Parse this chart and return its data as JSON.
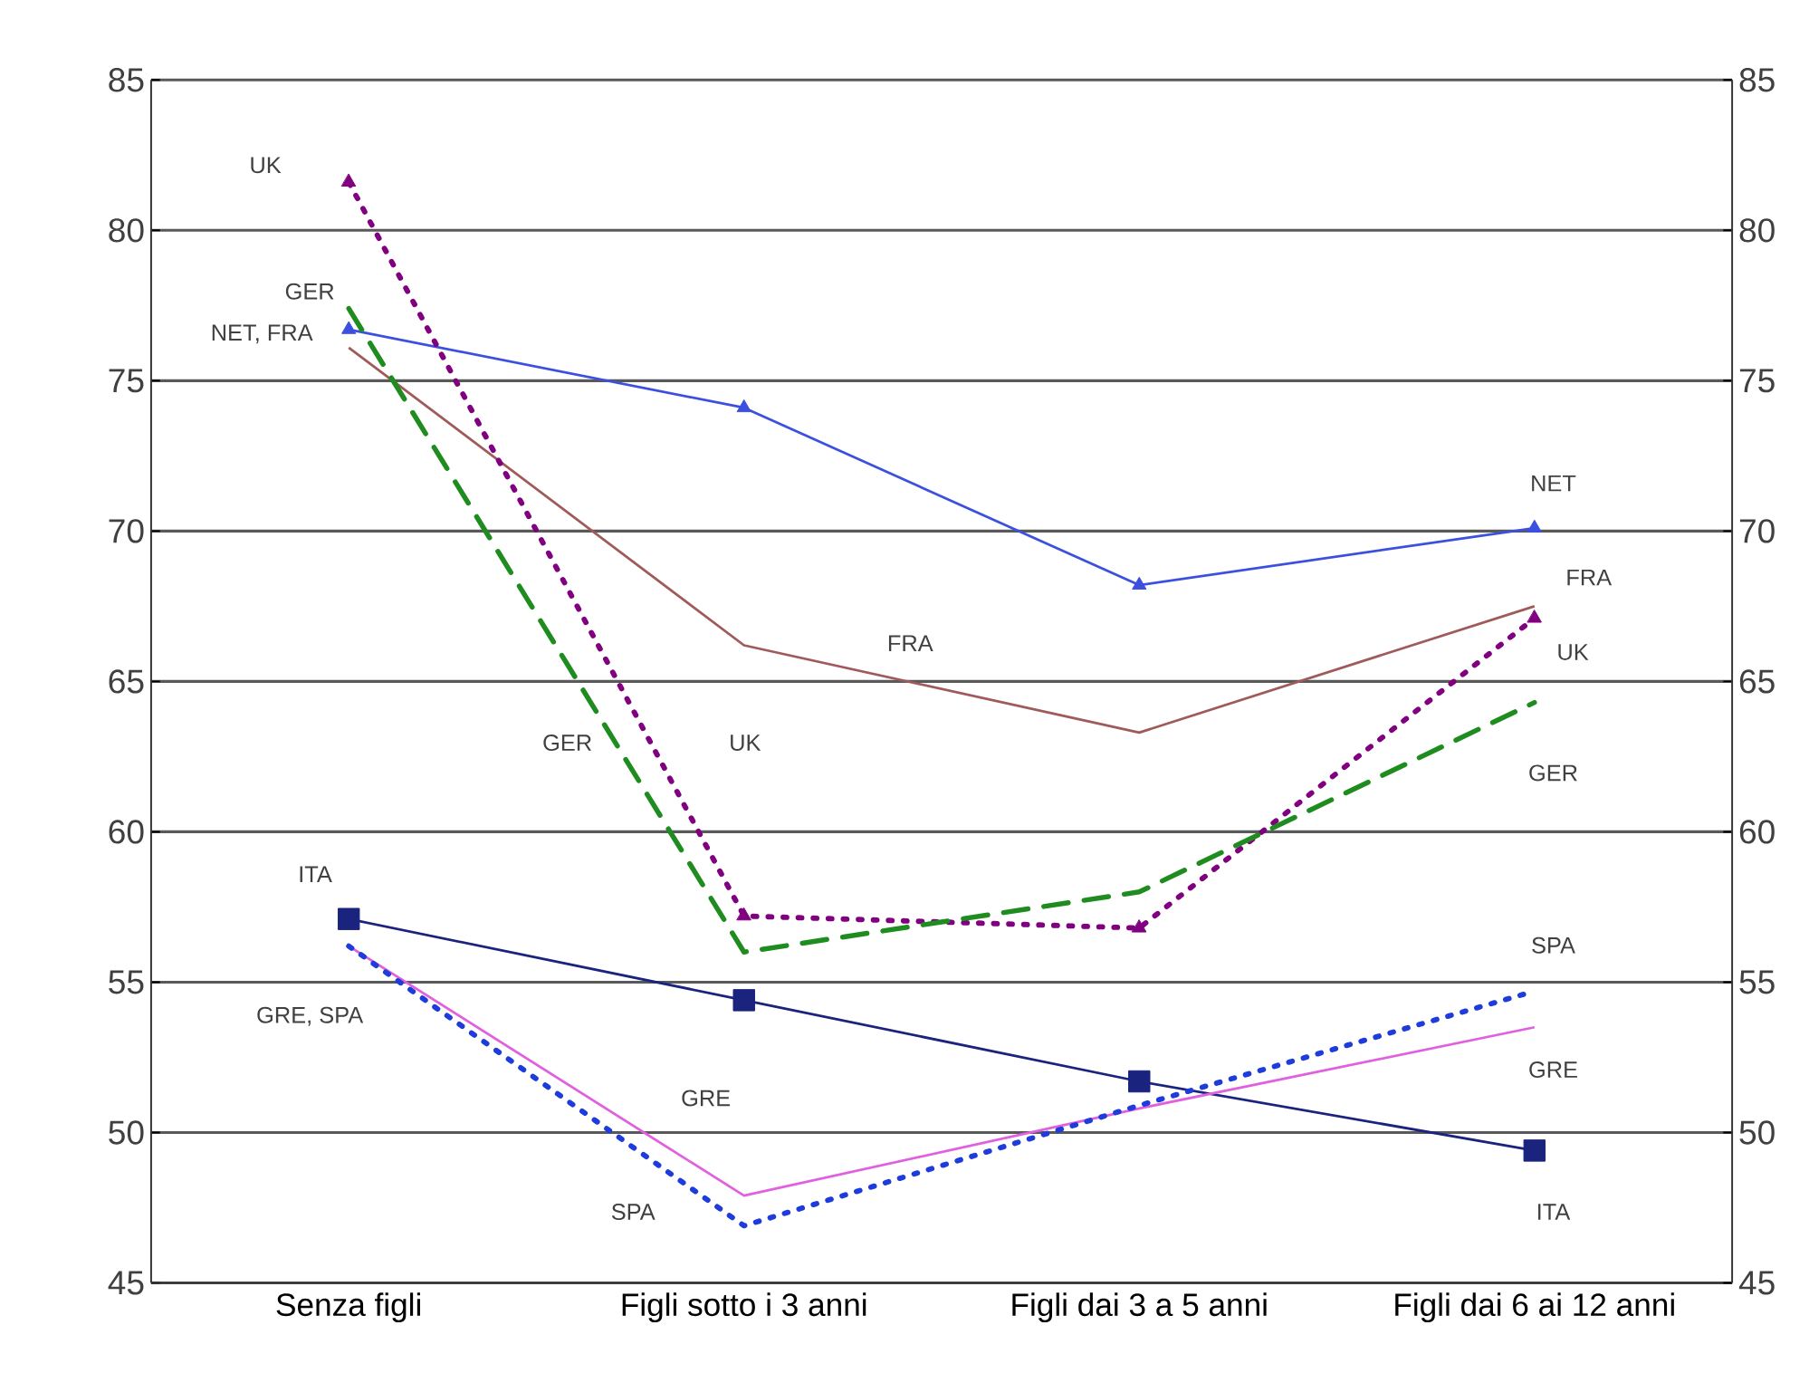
{
  "chart_data": {
    "type": "line",
    "categories": [
      "Senza figli",
      "Figli sotto i 3 anni",
      "Figli dai 3 a 5 anni",
      "Figli dai 6 ai 12 anni"
    ],
    "ylim": [
      45,
      85
    ],
    "yticks": [
      45,
      50,
      55,
      60,
      65,
      70,
      75,
      80,
      85
    ],
    "y2lim": [
      45,
      85
    ],
    "y2ticks": [
      45,
      50,
      55,
      60,
      65,
      70,
      75,
      80,
      85
    ],
    "grid": "y",
    "series": [
      {
        "color": "#3c50e0",
        "values": [
          76.7,
          74.1,
          68.2,
          70.1
        ],
        "marker": "triangle",
        "line_style": "solid"
      },
      {
        "color": "#a05a5a",
        "values": [
          76.1,
          66.2,
          63.3,
          67.5
        ],
        "marker": "none",
        "line_style": "solid"
      },
      {
        "color": "#800080",
        "values": [
          81.6,
          57.2,
          56.8,
          67.1
        ],
        "marker": "triangle",
        "line_style": "dotted"
      },
      {
        "color": "#1e8c1e",
        "values": [
          77.4,
          56.0,
          58.0,
          64.3
        ],
        "marker": "none",
        "line_style": "dashed"
      },
      {
        "color": "#1a237e",
        "values": [
          57.1,
          54.4,
          51.7,
          49.4
        ],
        "marker": "square",
        "line_style": "solid"
      },
      {
        "color": "#e060e0",
        "values": [
          56.2,
          47.9,
          50.8,
          53.5
        ],
        "marker": "none",
        "line_style": "solid"
      },
      {
        "color": "#1e3cdc",
        "values": [
          56.2,
          46.9,
          50.9,
          54.7
        ],
        "marker": "none",
        "line_style": "dotted"
      }
    ],
    "annotations": [
      "UK",
      "GER",
      "NET, FRA",
      "ITA",
      "GRE, SPA",
      "GER",
      "UK",
      "FRA",
      "GRE",
      "SPA",
      "NET",
      "FRA",
      "UK",
      "GER",
      "SPA",
      "GRE",
      "ITA"
    ]
  }
}
